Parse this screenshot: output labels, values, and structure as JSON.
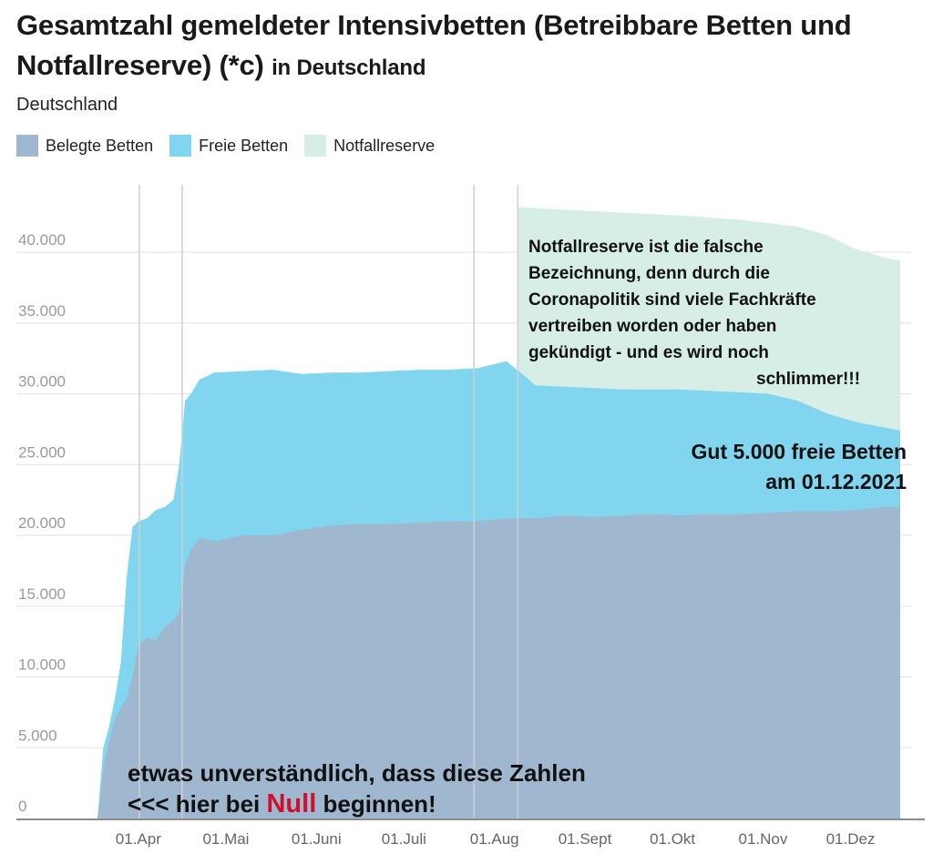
{
  "header": {
    "title_main": "Gesamtzahl gemeldeter Intensivbetten (Betreibbare Betten und Notfallreserve) (*c)",
    "title_suffix": "in Deutschland",
    "subtitle": "Deutschland"
  },
  "legend": [
    {
      "label": "Belegte Betten",
      "color": "#9fb7cf"
    },
    {
      "label": "Freie Betten",
      "color": "#82d5ee"
    },
    {
      "label": "Notfallreserve",
      "color": "#d6eee6"
    }
  ],
  "annotations": {
    "reserve_note": [
      "Notfallreserve ist die falsche",
      "Bezeichnung, denn durch die",
      "Coronapolitik sind viele Fachkräfte",
      "vertreiben worden oder haben",
      "gekündigt - und es wird noch",
      "schlimmer!!!"
    ],
    "free_beds_note": [
      "Gut 5.000 freie Betten",
      "am 01.12.2021"
    ],
    "zero_note_line1": "etwas unverständlich, dass diese Zahlen",
    "zero_note_prefix": "<<< hier bei ",
    "zero_note_highlight": "Null",
    "zero_note_suffix": " beginnen!"
  },
  "chart_data": {
    "type": "area",
    "title": "Gesamtzahl gemeldeter Intensivbetten (Betreibbare Betten und Notfallreserve) (*c) in Deutschland",
    "stacked": true,
    "x_range_days": [
      0,
      275
    ],
    "ylim": [
      0,
      45000
    ],
    "yticks": [
      {
        "value": 0,
        "label": "0"
      },
      {
        "value": 5000,
        "label": "5.000"
      },
      {
        "value": 10000,
        "label": "10.000"
      },
      {
        "value": 15000,
        "label": "15.000"
      },
      {
        "value": 20000,
        "label": "20.000"
      },
      {
        "value": 25000,
        "label": "25.000"
      },
      {
        "value": 30000,
        "label": "30.000"
      },
      {
        "value": 35000,
        "label": "35.000"
      },
      {
        "value": 40000,
        "label": "40.000"
      }
    ],
    "xticks": [
      {
        "day": 14,
        "label": "01.Apr"
      },
      {
        "day": 44,
        "label": "01.Mai"
      },
      {
        "day": 75,
        "label": "01.Juni"
      },
      {
        "day": 105,
        "label": "01.Juli"
      },
      {
        "day": 136,
        "label": "01.Aug"
      },
      {
        "day": 167,
        "label": "01.Sept"
      },
      {
        "day": 197,
        "label": "01.Okt"
      },
      {
        "day": 228,
        "label": "01.Nov"
      },
      {
        "day": 258,
        "label": "01.Dez"
      }
    ],
    "gridlines_days": [
      0,
      29,
      129,
      144
    ],
    "series": [
      {
        "name": "Belegte Betten",
        "color": "#9fb7cf",
        "points": [
          [
            0,
            0
          ],
          [
            1,
            1500
          ],
          [
            2,
            3500
          ],
          [
            4,
            5500
          ],
          [
            6,
            7000
          ],
          [
            8,
            7800
          ],
          [
            10,
            8500
          ],
          [
            12,
            10000
          ],
          [
            14,
            12200
          ],
          [
            17,
            12800
          ],
          [
            20,
            12600
          ],
          [
            23,
            13500
          ],
          [
            26,
            14000
          ],
          [
            28,
            14500
          ],
          [
            30,
            17800
          ],
          [
            32,
            19000
          ],
          [
            35,
            19800
          ],
          [
            40,
            19600
          ],
          [
            50,
            20000
          ],
          [
            60,
            20000
          ],
          [
            70,
            20400
          ],
          [
            80,
            20700
          ],
          [
            90,
            20800
          ],
          [
            100,
            20800
          ],
          [
            110,
            20900
          ],
          [
            120,
            21000
          ],
          [
            130,
            21000
          ],
          [
            140,
            21200
          ],
          [
            150,
            21200
          ],
          [
            160,
            21400
          ],
          [
            170,
            21300
          ],
          [
            180,
            21400
          ],
          [
            190,
            21500
          ],
          [
            200,
            21400
          ],
          [
            210,
            21500
          ],
          [
            220,
            21500
          ],
          [
            230,
            21600
          ],
          [
            240,
            21700
          ],
          [
            250,
            21700
          ],
          [
            260,
            21800
          ],
          [
            270,
            22000
          ],
          [
            275,
            22000
          ]
        ]
      },
      {
        "name": "Freie Betten",
        "color": "#82d5ee",
        "points": [
          [
            0,
            0
          ],
          [
            1,
            2500
          ],
          [
            2,
            5000
          ],
          [
            4,
            6500
          ],
          [
            6,
            8500
          ],
          [
            8,
            11000
          ],
          [
            10,
            17000
          ],
          [
            12,
            20600
          ],
          [
            14,
            21000
          ],
          [
            17,
            21200
          ],
          [
            20,
            21800
          ],
          [
            23,
            22000
          ],
          [
            26,
            22500
          ],
          [
            28,
            25000
          ],
          [
            30,
            29500
          ],
          [
            32,
            30000
          ],
          [
            35,
            31000
          ],
          [
            40,
            31500
          ],
          [
            50,
            31600
          ],
          [
            60,
            31700
          ],
          [
            70,
            31400
          ],
          [
            80,
            31500
          ],
          [
            90,
            31500
          ],
          [
            100,
            31600
          ],
          [
            110,
            31700
          ],
          [
            120,
            31700
          ],
          [
            130,
            31800
          ],
          [
            140,
            32300
          ],
          [
            145,
            31500
          ],
          [
            150,
            30600
          ],
          [
            160,
            30500
          ],
          [
            170,
            30400
          ],
          [
            180,
            30300
          ],
          [
            190,
            30300
          ],
          [
            200,
            30300
          ],
          [
            210,
            30200
          ],
          [
            220,
            30100
          ],
          [
            230,
            30000
          ],
          [
            240,
            29500
          ],
          [
            250,
            28600
          ],
          [
            260,
            28000
          ],
          [
            270,
            27600
          ],
          [
            275,
            27400
          ]
        ]
      },
      {
        "name": "Notfallreserve",
        "color": "#d6eee6",
        "points": [
          [
            144,
            43200
          ],
          [
            160,
            43000
          ],
          [
            180,
            42800
          ],
          [
            200,
            42600
          ],
          [
            220,
            42300
          ],
          [
            240,
            41800
          ],
          [
            250,
            41200
          ],
          [
            260,
            40200
          ],
          [
            270,
            39600
          ],
          [
            275,
            39400
          ]
        ]
      }
    ]
  }
}
